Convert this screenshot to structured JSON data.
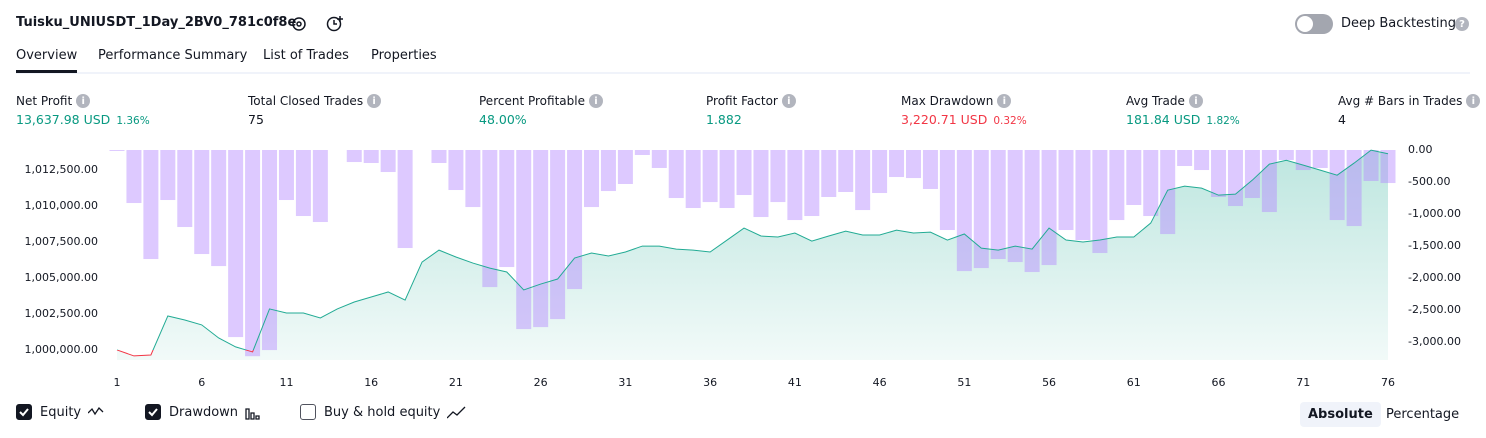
{
  "header": {
    "title": "Tuisku_UNIUSDT_1Day_2BV0_781c0f8e",
    "deep_backtesting": "Deep Backtesting",
    "deep_backtesting_on": false
  },
  "tabs": {
    "items": [
      "Overview",
      "Performance Summary",
      "List of Trades",
      "Properties"
    ],
    "active": "Overview"
  },
  "metrics": [
    {
      "label": "Net Profit",
      "value": "13,637.98 USD",
      "percent": "1.36%",
      "color": "#089981"
    },
    {
      "label": "Total Closed Trades",
      "value": "75",
      "color": "#131722"
    },
    {
      "label": "Percent Profitable",
      "value": "48.00%",
      "color": "#089981"
    },
    {
      "label": "Profit Factor",
      "value": "1.882",
      "color": "#089981"
    },
    {
      "label": "Max Drawdown",
      "value": "3,220.71 USD",
      "percent": "0.32%",
      "color": "#f23645"
    },
    {
      "label": "Avg Trade",
      "value": "181.84 USD",
      "percent": "1.82%",
      "color": "#089981"
    },
    {
      "label": "Avg # Bars in Trades",
      "value": "4",
      "color": "#131722"
    }
  ],
  "chart_data": {
    "type": "equity_drawdown",
    "x": [
      1,
      2,
      3,
      4,
      5,
      6,
      7,
      8,
      9,
      10,
      11,
      12,
      13,
      14,
      15,
      16,
      17,
      18,
      19,
      20,
      21,
      22,
      23,
      24,
      25,
      26,
      27,
      28,
      29,
      30,
      31,
      32,
      33,
      34,
      35,
      36,
      37,
      38,
      39,
      40,
      41,
      42,
      43,
      44,
      45,
      46,
      47,
      48,
      49,
      50,
      51,
      52,
      53,
      54,
      55,
      56,
      57,
      58,
      59,
      60,
      61,
      62,
      63,
      64,
      65,
      66,
      67,
      68,
      69,
      70,
      71,
      72,
      73,
      74,
      75,
      76
    ],
    "series": [
      {
        "name": "Equity",
        "color": "#22ab94",
        "below_color": "#f23645",
        "values": [
          1000000,
          999583,
          999650,
          1002360,
          1002080,
          1001740,
          1000830,
          1000210,
          999860,
          1002850,
          1002570,
          1002570,
          1002220,
          1002850,
          1003330,
          1003680,
          1004030,
          1003470,
          1006110,
          1006940,
          1006460,
          1006040,
          1005690,
          1005420,
          1004170,
          1004580,
          1004930,
          1006390,
          1006740,
          1006530,
          1006810,
          1007220,
          1007220,
          1007010,
          1006940,
          1006810,
          1007640,
          1008470,
          1007920,
          1007850,
          1008130,
          1007570,
          1007920,
          1008260,
          1007990,
          1007990,
          1008330,
          1008130,
          1008190,
          1007640,
          1008060,
          1007080,
          1006940,
          1007220,
          1007010,
          1008470,
          1007640,
          1007500,
          1007640,
          1007850,
          1007850,
          1008820,
          1011110,
          1011390,
          1011250,
          1010760,
          1010830,
          1011810,
          1012920,
          1013190,
          1012850,
          1012500,
          1012150,
          1012990,
          1013890,
          1013638
        ]
      },
      {
        "name": "Drawdown",
        "axis": "y2",
        "color": "#b388ff",
        "values": [
          -15,
          -828,
          -1703,
          -781,
          -1203,
          -1625,
          -1813,
          -2922,
          -3220.71,
          -3125,
          -781,
          -1031,
          -1125,
          0,
          -188,
          -203,
          -344,
          -1531,
          0,
          -203,
          -625,
          -891,
          -2141,
          -1828,
          -2797,
          -2766,
          -2641,
          -2172,
          -891,
          -641,
          -531,
          -78,
          -281,
          -750,
          -906,
          -813,
          -906,
          -703,
          -1047,
          -813,
          -1094,
          -1031,
          -734,
          -656,
          -938,
          -672,
          -422,
          -438,
          -609,
          -1250,
          -1891,
          -1844,
          -1703,
          -1750,
          -1906,
          -1797,
          -1250,
          -1406,
          -1609,
          -1094,
          -859,
          -1031,
          -1313,
          -250,
          -313,
          -734,
          -875,
          -750,
          -969,
          -156,
          -313,
          -281,
          -1094,
          -1188,
          -484,
          -516
        ]
      }
    ],
    "xlim": [
      1,
      76
    ],
    "xticks": [
      1,
      6,
      11,
      16,
      21,
      26,
      31,
      36,
      41,
      46,
      51,
      56,
      61,
      66,
      71,
      76
    ],
    "ylim": [
      999300,
      1013900
    ],
    "yticks": [
      {
        "value": 1000000,
        "label": "1,000,000.00"
      },
      {
        "value": 1002500,
        "label": "1,002,500.00"
      },
      {
        "value": 1005000,
        "label": "1,005,000.00"
      },
      {
        "value": 1007500,
        "label": "1,007,500.00"
      },
      {
        "value": 1010000,
        "label": "1,010,000.00"
      },
      {
        "value": 1012500,
        "label": "1,012,500.00"
      }
    ],
    "y2lim": [
      -3280,
      0
    ],
    "y2ticks": [
      {
        "value": 0,
        "label": "0.00"
      },
      {
        "value": -500,
        "label": "-500.00"
      },
      {
        "value": -1000,
        "label": "-1,000.00"
      },
      {
        "value": -1500,
        "label": "-1,500.00"
      },
      {
        "value": -2000,
        "label": "-2,000.00"
      },
      {
        "value": -2500,
        "label": "-2,500.00"
      },
      {
        "value": -3000,
        "label": "-3,000.00"
      }
    ]
  },
  "controls": {
    "toggles": [
      {
        "label": "Equity",
        "checked": true
      },
      {
        "label": "Drawdown",
        "checked": true
      },
      {
        "label": "Buy & hold equity",
        "checked": false
      }
    ],
    "modes": [
      "Absolute",
      "Percentage"
    ],
    "active_mode": "Absolute"
  }
}
